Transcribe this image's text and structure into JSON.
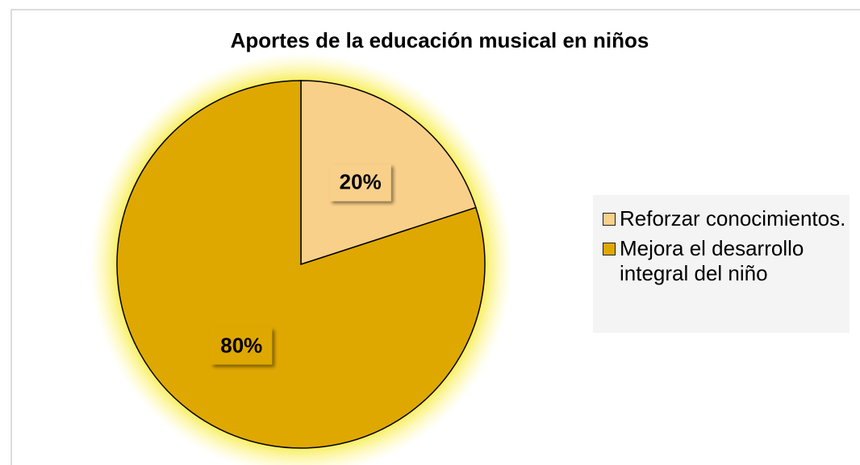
{
  "chart_data": {
    "type": "pie",
    "title": "Aportes de la educación musical en niños",
    "categories": [
      "Reforzar conocimientos.",
      "Mejora el desarrollo integral del niño"
    ],
    "values": [
      20,
      80
    ],
    "value_labels": [
      "20%",
      "80%"
    ],
    "colors": [
      "#f9d08a",
      "#dfa800"
    ],
    "legend": "right"
  }
}
